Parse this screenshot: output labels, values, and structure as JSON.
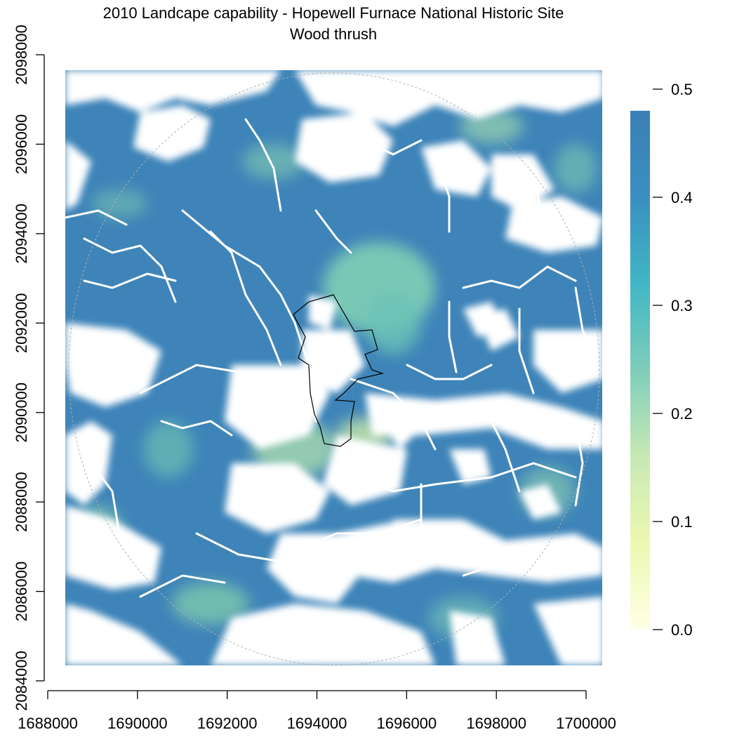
{
  "title": "2010 Landcape capability - Hopewell Furnace National Historic Site",
  "subtitle": "Wood thrush",
  "x_axis": {
    "range": [
      1688000,
      1700000
    ],
    "ticks": [
      "1688000",
      "1690000",
      "1692000",
      "1694000",
      "1696000",
      "1698000",
      "1700000"
    ]
  },
  "y_axis": {
    "range": [
      2084000,
      2098000
    ],
    "ticks": [
      "2084000",
      "2086000",
      "2088000",
      "2090000",
      "2092000",
      "2094000",
      "2096000",
      "2098000"
    ]
  },
  "legend": {
    "placement": "right",
    "ticks": [
      "0.0",
      "0.1",
      "0.2",
      "0.3",
      "0.4",
      "0.5"
    ],
    "range": [
      0,
      0.48
    ],
    "colors": [
      "#ffffe5",
      "#edf8b1",
      "#c7e9b4",
      "#7fcdbb",
      "#41b6c4",
      "#3a8fc0",
      "#3b7fb5"
    ]
  },
  "map": {
    "background_color": "#ffffff",
    "capability_peak_color": "#3a80b8",
    "road_color": "#ffffff",
    "boundary_color": "#000000",
    "buffer_circle_color": "#b0b0b0"
  }
}
